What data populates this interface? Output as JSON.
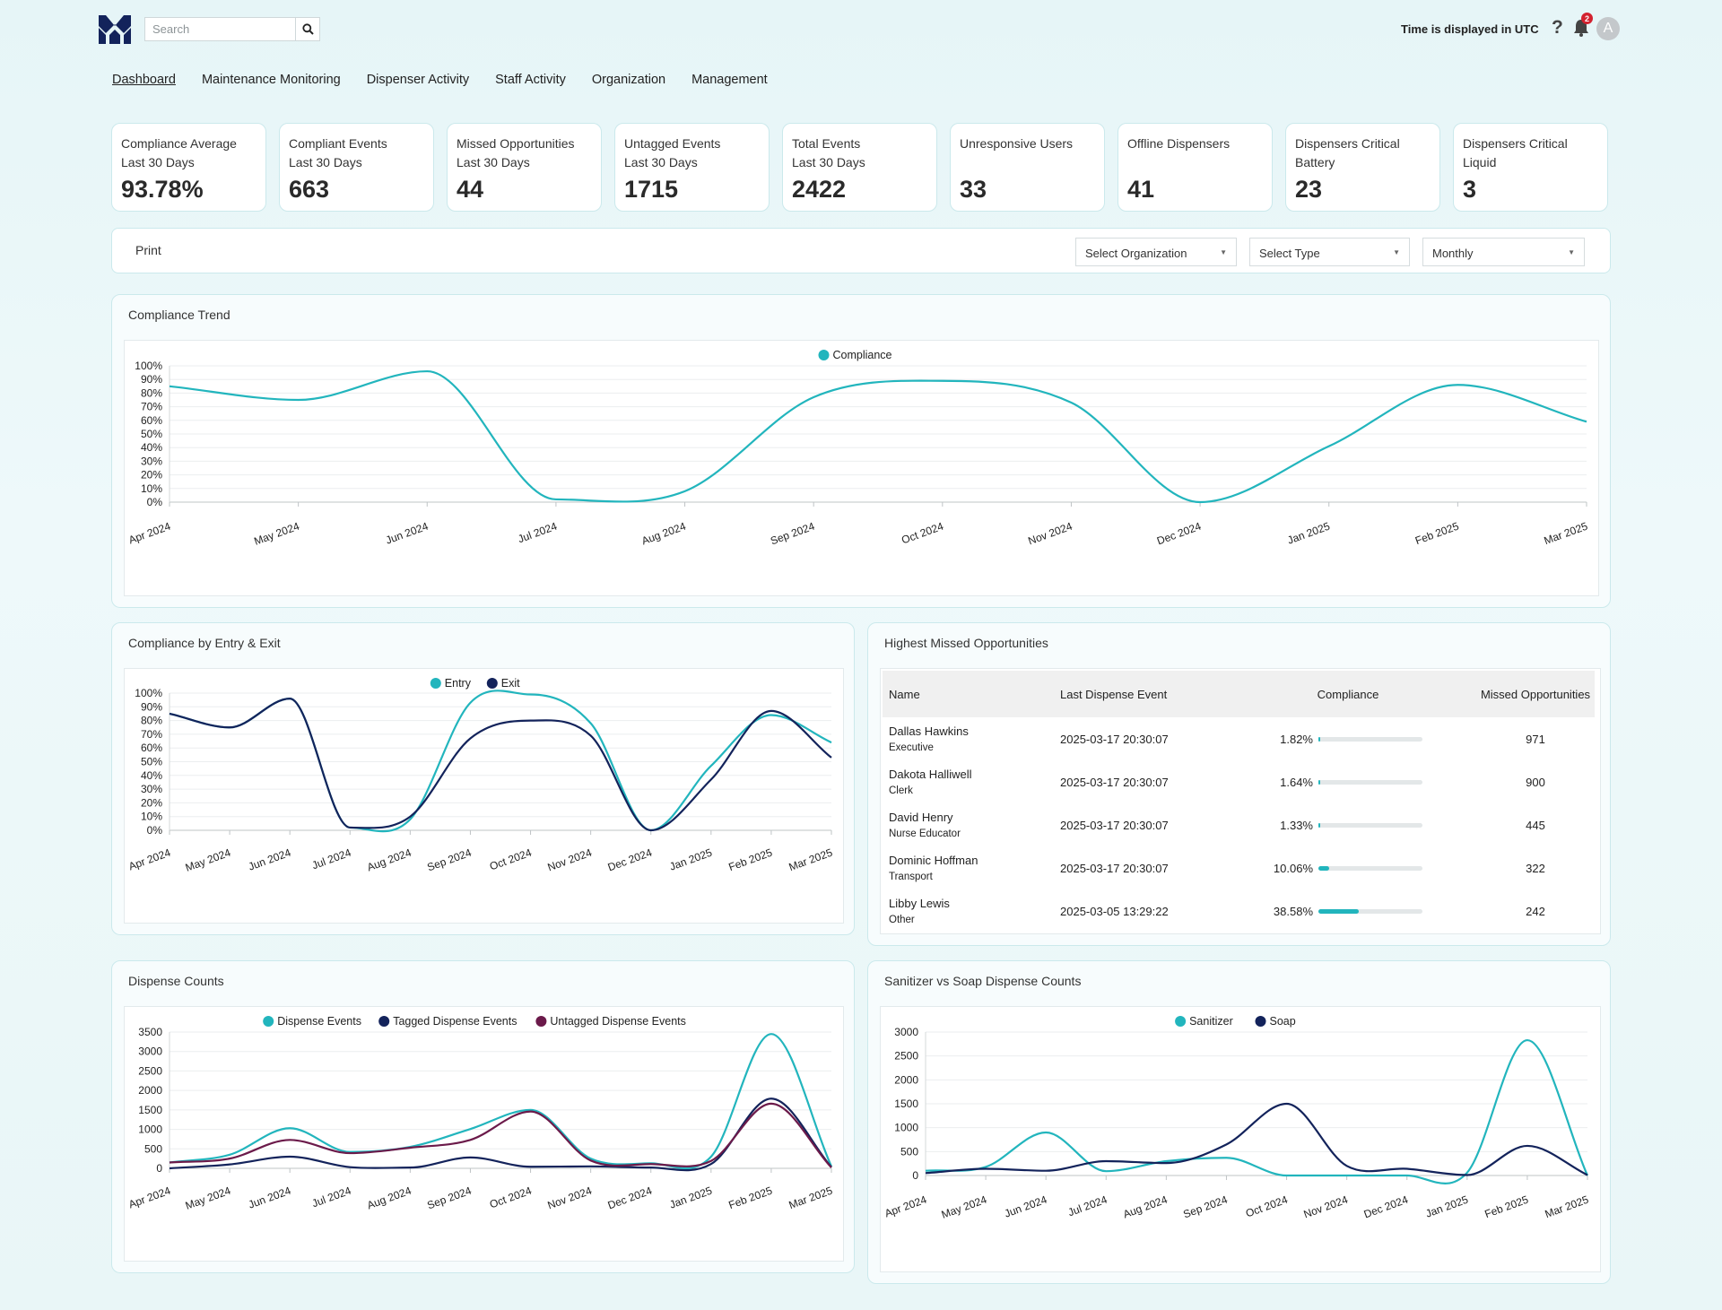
{
  "header": {
    "search_placeholder": "Search",
    "utc_notice": "Time is displayed in UTC",
    "help_label": "?",
    "notification_count": "2",
    "avatar_initial": "A"
  },
  "nav": [
    "Dashboard",
    "Maintenance Monitoring",
    "Dispenser Activity",
    "Staff Activity",
    "Organization",
    "Management"
  ],
  "kpis": [
    {
      "label": "Compliance Average\nLast 30 Days",
      "value": "93.78%"
    },
    {
      "label": "Compliant Events\nLast 30 Days",
      "value": "663"
    },
    {
      "label": "Missed Opportunities\nLast 30 Days",
      "value": "44"
    },
    {
      "label": "Untagged Events\nLast 30 Days",
      "value": "1715"
    },
    {
      "label": "Total Events\nLast 30 Days",
      "value": "2422"
    },
    {
      "label": "Unresponsive Users",
      "value": "33"
    },
    {
      "label": "Offline Dispensers",
      "value": "41"
    },
    {
      "label": "Dispensers Critical\nBattery",
      "value": "23"
    },
    {
      "label": "Dispensers Critical\nLiquid",
      "value": "3"
    }
  ],
  "filters": {
    "print_label": "Print",
    "organization": "Select Organization",
    "type": "Select Type",
    "period": "Monthly"
  },
  "colors": {
    "teal": "#22b5bd",
    "navy": "#13235b",
    "plum": "#6b1a4a"
  },
  "panels": {
    "trend": "Compliance Trend",
    "entry_exit": "Compliance by Entry & Exit",
    "missed": "Highest Missed Opportunities",
    "dispense": "Dispense Counts",
    "sanitizer": "Sanitizer vs Soap Dispense Counts"
  },
  "missed_table": {
    "headers": [
      "Name",
      "Last Dispense Event",
      "Compliance",
      "Missed Opportunities"
    ],
    "rows": [
      {
        "name": "Dallas Hawkins",
        "role": "Executive",
        "last": "2025-03-17 20:30:07",
        "compliance": "1.82%",
        "pct": 1.82,
        "missed": "971"
      },
      {
        "name": "Dakota Halliwell",
        "role": "Clerk",
        "last": "2025-03-17 20:30:07",
        "compliance": "1.64%",
        "pct": 1.64,
        "missed": "900"
      },
      {
        "name": "David Henry",
        "role": "Nurse Educator",
        "last": "2025-03-17 20:30:07",
        "compliance": "1.33%",
        "pct": 1.33,
        "missed": "445"
      },
      {
        "name": "Dominic Hoffman",
        "role": "Transport",
        "last": "2025-03-17 20:30:07",
        "compliance": "10.06%",
        "pct": 10.06,
        "missed": "322"
      },
      {
        "name": "Libby Lewis",
        "role": "Other",
        "last": "2025-03-05 13:29:22",
        "compliance": "38.58%",
        "pct": 38.58,
        "missed": "242"
      }
    ]
  },
  "chart_data": [
    {
      "id": "trend",
      "type": "line",
      "categories": [
        "Apr 2024",
        "May 2024",
        "Jun 2024",
        "Jul 2024",
        "Aug 2024",
        "Sep 2024",
        "Oct 2024",
        "Nov 2024",
        "Dec 2024",
        "Jan 2025",
        "Feb 2025",
        "Mar 2025"
      ],
      "series": [
        {
          "name": "Compliance",
          "color": "#22b5bd",
          "values": [
            85,
            75,
            96,
            2,
            8,
            77,
            89,
            73,
            0,
            41,
            86,
            59
          ]
        }
      ],
      "yticks": [
        "0%",
        "10%",
        "20%",
        "30%",
        "40%",
        "50%",
        "60%",
        "70%",
        "80%",
        "90%",
        "100%"
      ],
      "ylim": [
        0,
        100
      ],
      "legend": "top-center",
      "grid": true
    },
    {
      "id": "entry_exit",
      "type": "line",
      "categories": [
        "Apr 2024",
        "May 2024",
        "Jun 2024",
        "Jul 2024",
        "Aug 2024",
        "Sep 2024",
        "Oct 2024",
        "Nov 2024",
        "Dec 2024",
        "Jan 2025",
        "Feb 2025",
        "Mar 2025"
      ],
      "series": [
        {
          "name": "Entry",
          "color": "#22b5bd",
          "values": [
            85,
            75,
            96,
            2,
            8,
            93,
            99,
            78,
            0,
            47,
            84,
            64
          ]
        },
        {
          "name": "Exit",
          "color": "#13235b",
          "values": [
            85,
            75,
            96,
            2,
            10,
            67,
            80,
            69,
            0,
            37,
            87,
            53
          ]
        }
      ],
      "yticks": [
        "0%",
        "10%",
        "20%",
        "30%",
        "40%",
        "50%",
        "60%",
        "70%",
        "80%",
        "90%",
        "100%"
      ],
      "ylim": [
        0,
        100
      ],
      "legend": "top-center",
      "grid": true
    },
    {
      "id": "dispense",
      "type": "line",
      "categories": [
        "Apr 2024",
        "May 2024",
        "Jun 2024",
        "Jul 2024",
        "Aug 2024",
        "Sep 2024",
        "Oct 2024",
        "Nov 2024",
        "Dec 2024",
        "Jan 2025",
        "Feb 2025",
        "Mar 2025"
      ],
      "series": [
        {
          "name": "Dispense Events",
          "color": "#22b5bd",
          "values": [
            150,
            350,
            1030,
            420,
            550,
            1010,
            1500,
            250,
            130,
            300,
            3450,
            50
          ]
        },
        {
          "name": "Tagged Dispense Events",
          "color": "#13235b",
          "values": [
            0,
            100,
            300,
            30,
            20,
            280,
            40,
            50,
            20,
            110,
            1790,
            30
          ]
        },
        {
          "name": "Untagged Dispense Events",
          "color": "#6b1a4a",
          "values": [
            150,
            250,
            730,
            390,
            530,
            730,
            1460,
            200,
            110,
            190,
            1660,
            20
          ]
        }
      ],
      "yticks": [
        "0",
        "500",
        "1000",
        "1500",
        "2000",
        "2500",
        "3000",
        "3500"
      ],
      "ylim": [
        0,
        3500
      ],
      "legend": "top-center",
      "grid": true
    },
    {
      "id": "sanitizer",
      "type": "line",
      "categories": [
        "Apr 2024",
        "May 2024",
        "Jun 2024",
        "Jul 2024",
        "Aug 2024",
        "Sep 2024",
        "Oct 2024",
        "Nov 2024",
        "Dec 2024",
        "Jan 2025",
        "Feb 2025",
        "Mar 2025"
      ],
      "series": [
        {
          "name": "Sanitizer",
          "color": "#22b5bd",
          "values": [
            100,
            180,
            900,
            90,
            300,
            370,
            0,
            0,
            0,
            60,
            2830,
            0
          ]
        },
        {
          "name": "Soap",
          "color": "#13235b",
          "values": [
            50,
            140,
            100,
            300,
            260,
            650,
            1500,
            200,
            140,
            10,
            620,
            10
          ]
        }
      ],
      "yticks": [
        "0",
        "500",
        "1000",
        "1500",
        "2000",
        "2500",
        "3000"
      ],
      "ylim": [
        0,
        3000
      ],
      "legend": "top-center",
      "grid": true
    }
  ]
}
